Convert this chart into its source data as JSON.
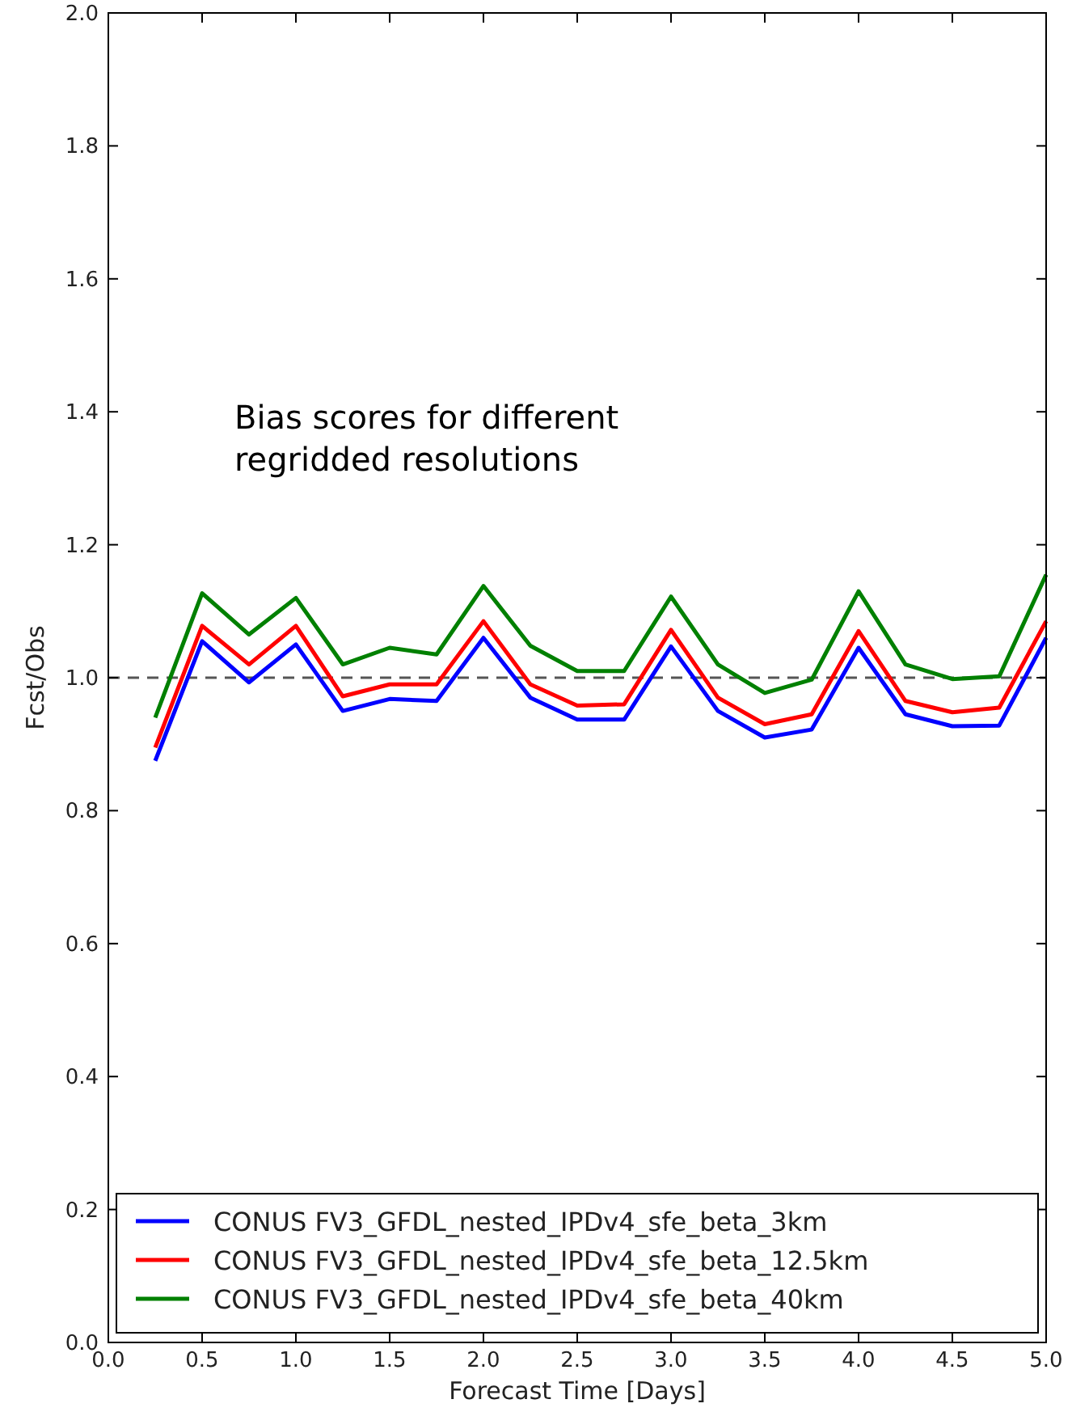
{
  "chart_data": {
    "type": "line",
    "xlabel": "Forecast Time [Days]",
    "ylabel": "Fcst/Obs",
    "annotations": [
      "Bias scores for different\nregridded resolutions"
    ],
    "x": [
      0.25,
      0.5,
      0.75,
      1.0,
      1.25,
      1.5,
      1.75,
      2.0,
      2.25,
      2.5,
      2.75,
      3.0,
      3.25,
      3.5,
      3.75,
      4.0,
      4.25,
      4.5,
      4.75,
      5.0
    ],
    "series": [
      {
        "name": "CONUS FV3_GFDL_nested_IPDv4_sfe_beta_3km",
        "color": "#0000ff",
        "values": [
          0.875,
          1.055,
          0.993,
          1.05,
          0.95,
          0.968,
          0.965,
          1.06,
          0.97,
          0.937,
          0.937,
          1.047,
          0.95,
          0.91,
          0.922,
          1.045,
          0.945,
          0.927,
          0.928,
          1.06
        ]
      },
      {
        "name": "CONUS FV3_GFDL_nested_IPDv4_sfe_beta_12.5km",
        "color": "#ff0000",
        "values": [
          0.895,
          1.078,
          1.02,
          1.078,
          0.972,
          0.99,
          0.99,
          1.085,
          0.99,
          0.958,
          0.96,
          1.072,
          0.97,
          0.93,
          0.945,
          1.07,
          0.965,
          0.948,
          0.955,
          1.085
        ]
      },
      {
        "name": "CONUS FV3_GFDL_nested_IPDv4_sfe_beta_40km",
        "color": "#008000",
        "values": [
          0.94,
          1.127,
          1.065,
          1.12,
          1.02,
          1.045,
          1.035,
          1.138,
          1.048,
          1.01,
          1.01,
          1.122,
          1.02,
          0.977,
          0.997,
          1.13,
          1.02,
          0.998,
          1.002,
          1.155
        ]
      }
    ],
    "xlim": [
      0,
      5
    ],
    "xticks": [
      {
        "value": 0,
        "label": "0.0"
      },
      0.5,
      {
        "value": 1,
        "label": "1.0"
      },
      1.5,
      {
        "value": 2,
        "label": "2.0"
      },
      2.5,
      {
        "value": 3,
        "label": "3.0"
      },
      3.5,
      {
        "value": 4,
        "label": "4.0"
      },
      4.5,
      {
        "value": 5,
        "label": "5.0"
      }
    ],
    "ylim": [
      0,
      2
    ],
    "yticks": [
      {
        "value": 0,
        "label": "0.0"
      },
      0.2,
      0.4,
      0.6,
      0.8,
      {
        "value": 1,
        "label": "1.0"
      },
      1.2,
      1.4,
      1.6,
      1.8,
      {
        "value": 2,
        "label": "2.0"
      }
    ],
    "ref_lines": [
      {
        "axis": "y",
        "value": 1,
        "color": "#555555",
        "line_style": "dashed"
      }
    ],
    "legend": "bottom",
    "grid": false,
    "marker": "none",
    "line_style": "solid"
  }
}
